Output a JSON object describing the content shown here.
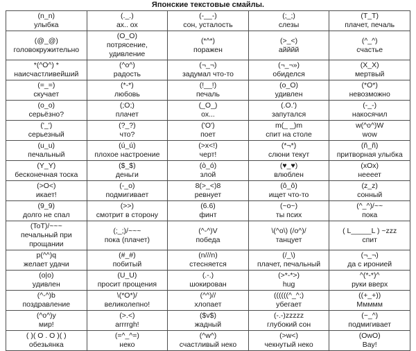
{
  "page": {
    "title": "Японские текстовые смайлы.",
    "colors": {
      "background": "#ffffff",
      "text": "#1a1a1a",
      "table_border": "#4d4d4d"
    }
  },
  "table": {
    "rows": [
      [
        {
          "smiley": "(n_n)",
          "description": "улыбка"
        },
        {
          "smiley": "(._.)",
          "description": "ах.. ох"
        },
        {
          "smiley": "(-__-)",
          "description": "сон, усталость"
        },
        {
          "smiley": "(;_;)",
          "description": "слезы"
        },
        {
          "smiley": "(T_T)",
          "description": "плачет, печаль"
        }
      ],
      [
        {
          "smiley": "(@_@)",
          "description": "головокружительно"
        },
        {
          "smiley": "(O_O)",
          "description": "потрясение, удивление"
        },
        {
          "smiley": "(*^*)",
          "description": "поражен"
        },
        {
          "smiley": "(>_<)",
          "description": "айййй"
        },
        {
          "smiley": "(^_^)",
          "description": "счастье"
        }
      ],
      [
        {
          "smiley": "*(^O^) *",
          "description": "наисчастливейший"
        },
        {
          "smiley": "(^o^)",
          "description": "радость"
        },
        {
          "smiley": "(¬_¬)",
          "description": "задумал что-то"
        },
        {
          "smiley": "(¬_¬»)",
          "description": "обиделся"
        },
        {
          "smiley": "(X_X)",
          "description": "мертвый"
        }
      ],
      [
        {
          "smiley": "(=_=)",
          "description": "скучает"
        },
        {
          "smiley": "(*-*)",
          "description": "любовь"
        },
        {
          "smiley": "(!__!)",
          "description": "печаль"
        },
        {
          "smiley": "(o_O)",
          "description": "удивлен"
        },
        {
          "smiley": "(*O*)",
          "description": "невозможно"
        }
      ],
      [
        {
          "smiley": "(o_o)",
          "description": "серьёзно?"
        },
        {
          "smiley": "(;O;)",
          "description": "плачет"
        },
        {
          "smiley": "(_O_)",
          "description": "ох..."
        },
        {
          "smiley": "(.O.')",
          "description": "запутался"
        },
        {
          "smiley": "(-_-)",
          "description": "накосячил"
        }
      ],
      [
        {
          "smiley": "('_')",
          "description": "серьезный"
        },
        {
          "smiley": "(?_?)",
          "description": "что?"
        },
        {
          "smiley": "('O')",
          "description": "поет"
        },
        {
          "smiley": "m(_ _)m",
          "description": "спит на столе"
        },
        {
          "smiley": "w(^o^)W",
          "description": "wow"
        }
      ],
      [
        {
          "smiley": "(u_u)",
          "description": "печальный"
        },
        {
          "smiley": "(ú_ú)",
          "description": "плохое настроение"
        },
        {
          "smiley": "(>x<!)",
          "description": "черт!"
        },
        {
          "smiley": "(*¬*)",
          "description": "слюни текут"
        },
        {
          "smiley": "(ñ_ñ)",
          "description": "притворная улыбка"
        }
      ],
      [
        {
          "smiley": "(Y_Y)",
          "description": "бесконечная тоска"
        },
        {
          "smiley": "($_$)",
          "description": "деньги"
        },
        {
          "smiley": "(ò_ó)",
          "description": "злой"
        },
        {
          "smiley": "(♥_♥)",
          "description": "влюблен"
        },
        {
          "smiley": "(xOx)",
          "description": "неееет"
        }
      ],
      [
        {
          "smiley": "(>O<)",
          "description": "икает!"
        },
        {
          "smiley": "(-_o)",
          "description": "подмигивает"
        },
        {
          "smiley": "8(>_<)8",
          "description": "ревнует"
        },
        {
          "smiley": "(ô_ô)",
          "description": "ищет что-то"
        },
        {
          "smiley": "(z_z)",
          "description": "сонный"
        }
      ],
      [
        {
          "smiley": "(9_9)",
          "description": "долго не спал"
        },
        {
          "smiley": "(>>)",
          "description": "смотрит в сторону"
        },
        {
          "smiley": "(6.6)",
          "description": "финт"
        },
        {
          "smiley": "(~o~)",
          "description": "ты псих"
        },
        {
          "smiley": "(^_^)/~~",
          "description": "пока"
        }
      ],
      [
        {
          "smiley": "(ToT)/~~~",
          "description": "печальный при прощании"
        },
        {
          "smiley": "(;_;)/~~~",
          "description": "пока (плачет)"
        },
        {
          "smiley": "(^-^)V",
          "description": "победа"
        },
        {
          "smiley": "\\(^o\\) (/o^)/",
          "description": "танцует"
        },
        {
          "smiley": "( L_____L ) ~zzz",
          "description": "спит"
        }
      ],
      [
        {
          "smiley": "p(^^)q",
          "description": "желает удачи"
        },
        {
          "smiley": "(#_#)",
          "description": "побитый"
        },
        {
          "smiley": "(n///n)",
          "description": "стесняется"
        },
        {
          "smiley": "(/_\\)",
          "description": "плачет, печальный"
        },
        {
          "smiley": "(¬_¬)",
          "description": "да с иронией"
        }
      ],
      [
        {
          "smiley": "(o|o)",
          "description": "удивлен"
        },
        {
          "smiley": "(U_U)",
          "description": "просит прощения"
        },
        {
          "smiley": "(.-.)",
          "description": "шокирован"
        },
        {
          "smiley": "(>*-*>)",
          "description": "hug"
        },
        {
          "smiley": "^(*-*)^",
          "description": "руки вверх"
        }
      ],
      [
        {
          "smiley": "(^-^)b",
          "description": "поздравление"
        },
        {
          "smiley": "\\(*O*)/",
          "description": "великолепно!"
        },
        {
          "smiley": "(^^)//",
          "description": "хлопает"
        },
        {
          "smiley": "((((((^_^;)",
          "description": "убегает"
        },
        {
          "smiley": "((+_+))",
          "description": "Ммммм"
        }
      ],
      [
        {
          "smiley": "(^o^)y",
          "description": "мир!"
        },
        {
          "smiley": "(>.<)",
          "description": "arrrrgh!"
        },
        {
          "smiley": "($v$)",
          "description": "жадный"
        },
        {
          "smiley": "(-.-)zzzzz",
          "description": "глубокий сон"
        },
        {
          "smiley": "(~_^)",
          "description": "подмигивает"
        }
      ],
      [
        {
          "smiley": "( )( O . O )( )",
          "description": "обезьянка"
        },
        {
          "smiley": "(=^_^=)",
          "description": "неко"
        },
        {
          "smiley": "(^w^)",
          "description": "счастливый неко"
        },
        {
          "smiley": "(>w<)",
          "description": "чекнутый неко"
        },
        {
          "smiley": "(OwO)",
          "description": "Вау!"
        }
      ]
    ]
  }
}
